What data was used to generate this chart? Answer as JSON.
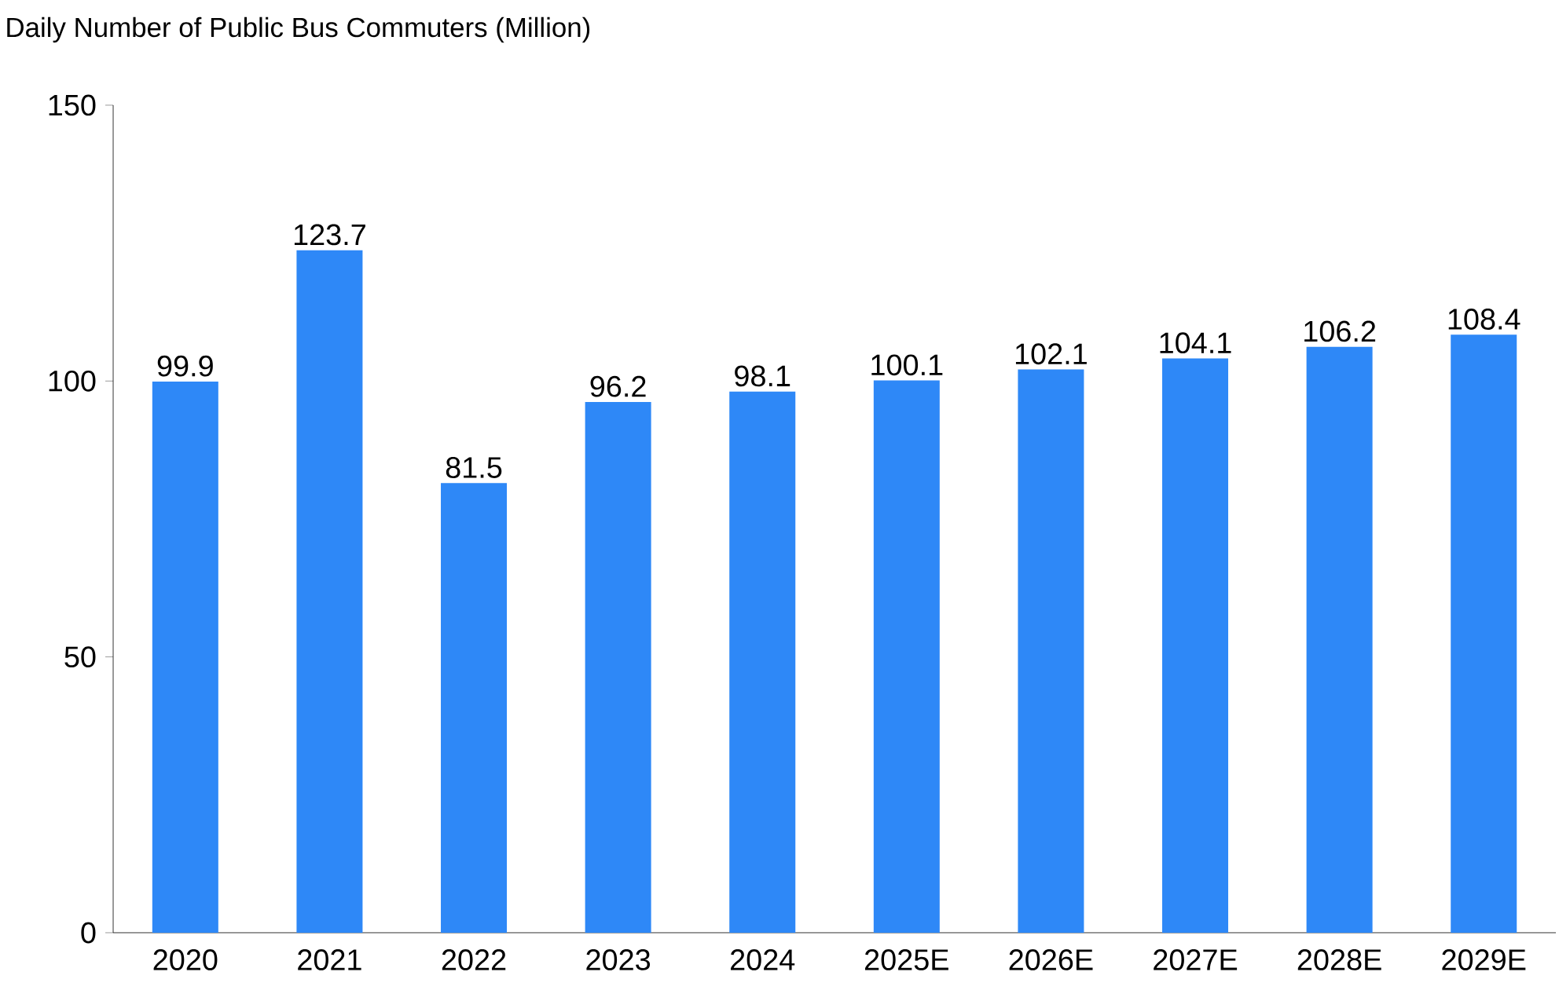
{
  "chart_data": {
    "type": "bar",
    "title": "Daily Number of Public Bus Commuters (Million)",
    "categories": [
      "2020",
      "2021",
      "2022",
      "2023",
      "2024",
      "2025E",
      "2026E",
      "2027E",
      "2028E",
      "2029E"
    ],
    "values": [
      99.9,
      123.7,
      81.5,
      96.2,
      98.1,
      100.1,
      102.1,
      104.1,
      106.2,
      108.4
    ],
    "color": "#2e88f7",
    "ylim": [
      0,
      150
    ],
    "yticks": [
      0,
      50,
      100,
      150
    ],
    "grid": false,
    "data_labels": true
  }
}
